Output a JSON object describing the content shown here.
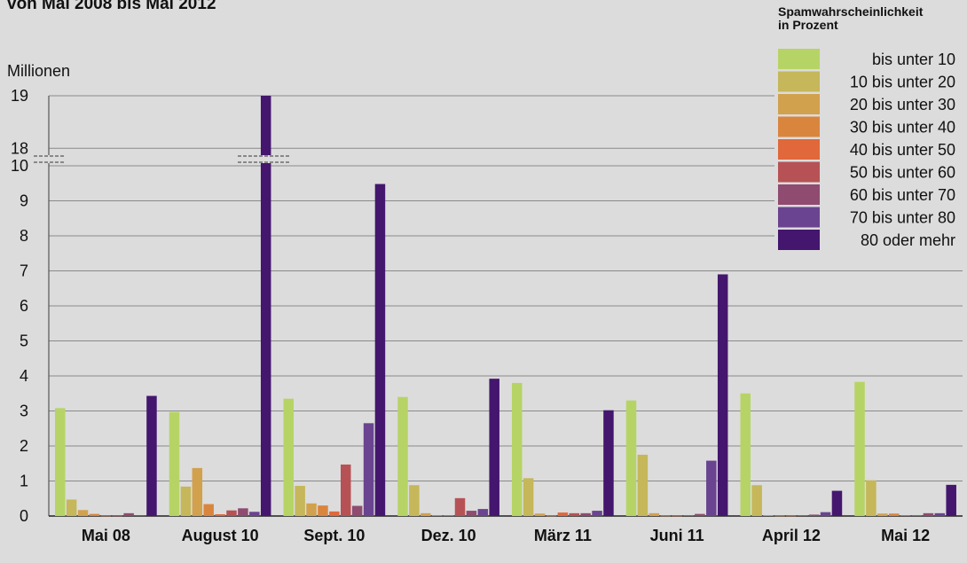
{
  "chart_data": {
    "type": "bar",
    "title": "",
    "subtitle": "von Mai 2008 bis Mai 2012",
    "ylabel": "Millionen",
    "xlabel": "",
    "categories": [
      "Mai 08",
      "August 10",
      "Sept. 10",
      "Dez. 10",
      "März 11",
      "Juni 11",
      "April 12",
      "Mai 12"
    ],
    "ylim": [
      0,
      19
    ],
    "y_ticks": [
      0,
      1,
      2,
      3,
      4,
      5,
      6,
      7,
      8,
      9,
      10,
      18,
      19
    ],
    "axis_break": "between 10 and 18",
    "grid": true,
    "legend_title": "Spamwahrscheinlichkeit\nin Prozent",
    "legend_position": "top-right",
    "series": [
      {
        "name": "bis unter 10",
        "color": "#b6d465",
        "values": [
          3.08,
          2.97,
          3.35,
          3.4,
          3.8,
          3.3,
          3.5,
          3.83
        ]
      },
      {
        "name": "10 bis unter 20",
        "color": "#c5b75a",
        "values": [
          0.47,
          0.84,
          0.86,
          0.88,
          1.08,
          1.75,
          0.88,
          1.02
        ]
      },
      {
        "name": "20 bis unter 30",
        "color": "#d2a14d",
        "values": [
          0.17,
          1.37,
          0.36,
          0.08,
          0.07,
          0.08,
          0.02,
          0.07
        ]
      },
      {
        "name": "30 bis unter 40",
        "color": "#d9853e",
        "values": [
          0.06,
          0.34,
          0.3,
          0.02,
          0.01,
          0.01,
          0.01,
          0.07
        ]
      },
      {
        "name": "40 bis unter 50",
        "color": "#e0683a",
        "values": [
          0.01,
          0.05,
          0.13,
          0.02,
          0.1,
          0.01,
          0.01,
          0.02
        ]
      },
      {
        "name": "50 bis unter 60",
        "color": "#b65255",
        "values": [
          0.01,
          0.16,
          1.47,
          0.51,
          0.08,
          0.02,
          0.02,
          0.02
        ]
      },
      {
        "name": "60 bis unter 70",
        "color": "#8f4b70",
        "values": [
          0.08,
          0.22,
          0.29,
          0.15,
          0.08,
          0.06,
          0.04,
          0.08
        ]
      },
      {
        "name": "70 bis unter 80",
        "color": "#6a4490",
        "values": [
          0.02,
          0.12,
          2.65,
          0.2,
          0.15,
          1.58,
          0.11,
          0.08
        ]
      },
      {
        "name": "80 oder mehr",
        "color": "#44166e",
        "values": [
          3.43,
          19.0,
          9.48,
          3.92,
          3.02,
          6.9,
          0.72,
          0.89
        ]
      }
    ]
  }
}
